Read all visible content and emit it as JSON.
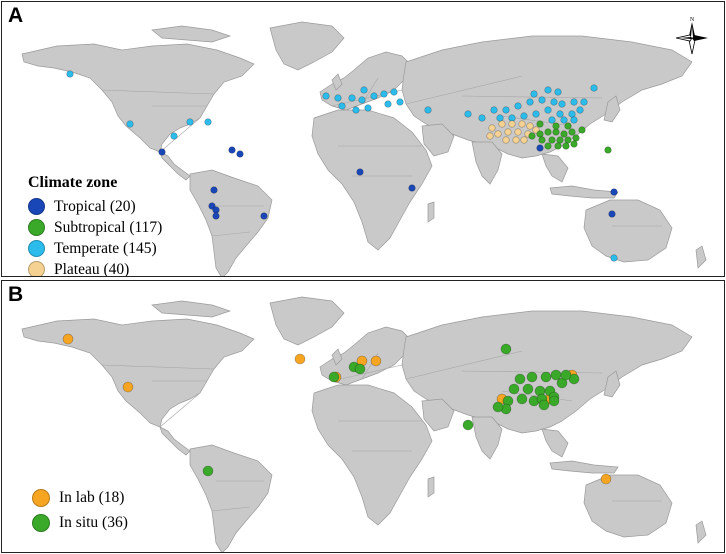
{
  "panel_a": {
    "label": "A",
    "compass_letter": "N",
    "legend_title": "Climate zone",
    "legend": [
      {
        "key": "tropical",
        "label": "Tropical (20)",
        "color": "#1a47b8"
      },
      {
        "key": "subtropical",
        "label": "Subtropical (117)",
        "color": "#3aa829"
      },
      {
        "key": "temperate",
        "label": "Temperate (145)",
        "color": "#2cbcec"
      },
      {
        "key": "plateau",
        "label": "Plateau (40)",
        "color": "#f5d292"
      }
    ]
  },
  "panel_b": {
    "label": "B",
    "legend": [
      {
        "key": "lab",
        "label": "In lab  (18)",
        "color": "#f5a522"
      },
      {
        "key": "situ",
        "label": "In situ (36)",
        "color": "#3aa829"
      }
    ]
  },
  "colors": {
    "land": "#c9c9c9",
    "border": "#9a9a9a",
    "background": "#ffffff"
  },
  "icons": [
    "compass-rose-icon"
  ]
}
